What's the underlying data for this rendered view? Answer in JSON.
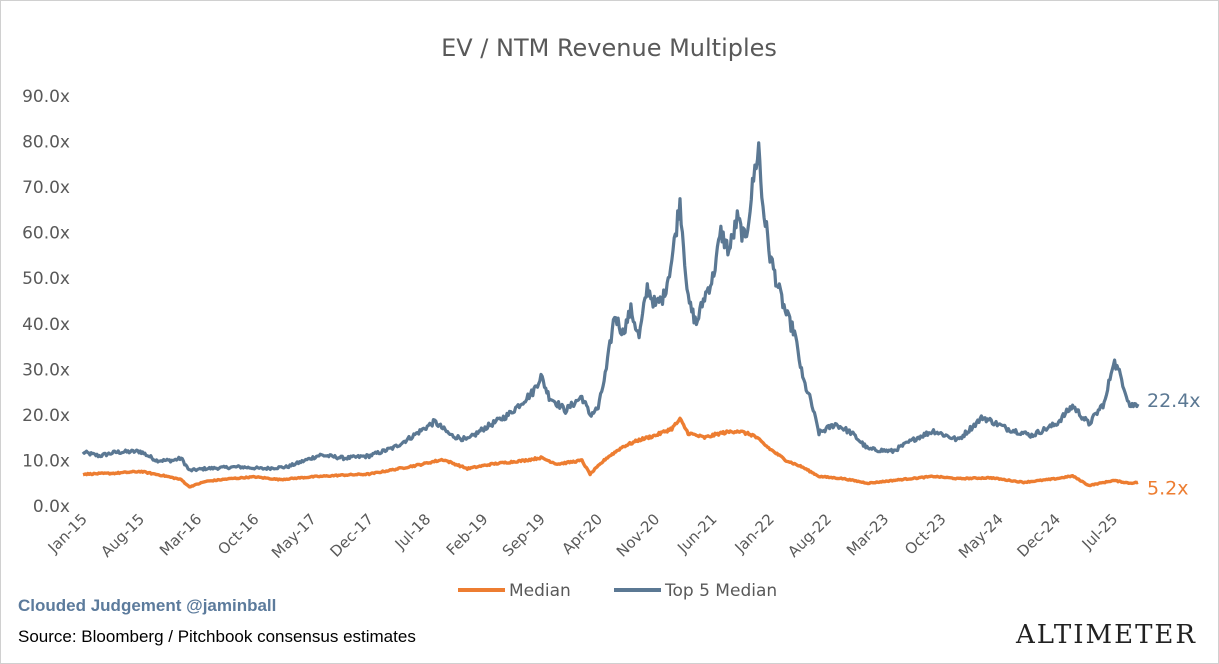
{
  "chart_data": {
    "type": "line",
    "title": "EV / NTM Revenue Multiples",
    "ylim": [
      0,
      90
    ],
    "yticks": [
      "0.0x",
      "10.0x",
      "20.0x",
      "30.0x",
      "40.0x",
      "50.0x",
      "60.0x",
      "70.0x",
      "80.0x",
      "90.0x"
    ],
    "xlim": [
      "2015-01",
      "2025-10"
    ],
    "xticks": [
      "Jan-15",
      "Aug-15",
      "Mar-16",
      "Oct-16",
      "May-17",
      "Dec-17",
      "Jul-18",
      "Feb-19",
      "Sep-19",
      "Apr-20",
      "Nov-20",
      "Jun-21",
      "Jan-22",
      "Aug-22",
      "Mar-23",
      "Oct-23",
      "May-24",
      "Dec-24",
      "Jul-25"
    ],
    "grid": false,
    "legend": "bottom",
    "series": [
      {
        "name": "Median",
        "color": "#ed7d31",
        "end_label": "5.2x",
        "points": [
          [
            "2015-01",
            7.0
          ],
          [
            "2015-05",
            7.2
          ],
          [
            "2015-08",
            7.6
          ],
          [
            "2015-11",
            6.6
          ],
          [
            "2016-01",
            5.8
          ],
          [
            "2016-02",
            4.2
          ],
          [
            "2016-04",
            5.4
          ],
          [
            "2016-07",
            6.0
          ],
          [
            "2016-10",
            6.4
          ],
          [
            "2017-01",
            5.8
          ],
          [
            "2017-05",
            6.4
          ],
          [
            "2017-09",
            6.8
          ],
          [
            "2017-12",
            7.0
          ],
          [
            "2018-03",
            8.0
          ],
          [
            "2018-06",
            9.0
          ],
          [
            "2018-09",
            10.2
          ],
          [
            "2018-12",
            8.2
          ],
          [
            "2019-03",
            9.2
          ],
          [
            "2019-07",
            10.0
          ],
          [
            "2019-09",
            10.6
          ],
          [
            "2019-11",
            9.2
          ],
          [
            "2020-02",
            10.0
          ],
          [
            "2020-03",
            7.0
          ],
          [
            "2020-05",
            10.5
          ],
          [
            "2020-07",
            13.0
          ],
          [
            "2020-09",
            14.5
          ],
          [
            "2020-11",
            15.5
          ],
          [
            "2021-01",
            17.0
          ],
          [
            "2021-02",
            19.0
          ],
          [
            "2021-03",
            16.0
          ],
          [
            "2021-05",
            15.0
          ],
          [
            "2021-07",
            16.0
          ],
          [
            "2021-09",
            16.5
          ],
          [
            "2021-11",
            15.5
          ],
          [
            "2022-01",
            12.5
          ],
          [
            "2022-03",
            10.0
          ],
          [
            "2022-05",
            8.5
          ],
          [
            "2022-07",
            6.5
          ],
          [
            "2022-10",
            6.0
          ],
          [
            "2023-01",
            5.0
          ],
          [
            "2023-05",
            5.8
          ],
          [
            "2023-09",
            6.5
          ],
          [
            "2023-12",
            6.0
          ],
          [
            "2024-04",
            6.2
          ],
          [
            "2024-08",
            5.2
          ],
          [
            "2024-12",
            6.0
          ],
          [
            "2025-02",
            6.6
          ],
          [
            "2025-04",
            4.5
          ],
          [
            "2025-07",
            5.6
          ],
          [
            "2025-09",
            5.0
          ],
          [
            "2025-10",
            5.2
          ]
        ]
      },
      {
        "name": "Top 5 Median",
        "color": "#5b7893",
        "end_label": "22.4x",
        "points": [
          [
            "2015-01",
            11.8
          ],
          [
            "2015-03",
            11.0
          ],
          [
            "2015-05",
            11.8
          ],
          [
            "2015-08",
            12.0
          ],
          [
            "2015-10",
            10.0
          ],
          [
            "2015-12",
            10.0
          ],
          [
            "2016-01",
            10.5
          ],
          [
            "2016-02",
            7.8
          ],
          [
            "2016-04",
            8.2
          ],
          [
            "2016-08",
            8.6
          ],
          [
            "2016-11",
            8.2
          ],
          [
            "2017-02",
            8.6
          ],
          [
            "2017-06",
            11.2
          ],
          [
            "2017-09",
            10.5
          ],
          [
            "2017-12",
            11.0
          ],
          [
            "2018-03",
            12.8
          ],
          [
            "2018-05",
            15.0
          ],
          [
            "2018-08",
            18.5
          ],
          [
            "2018-10",
            15.5
          ],
          [
            "2018-12",
            14.5
          ],
          [
            "2019-02",
            17.0
          ],
          [
            "2019-05",
            20.0
          ],
          [
            "2019-08",
            25.0
          ],
          [
            "2019-09",
            28.5
          ],
          [
            "2019-10",
            24.0
          ],
          [
            "2019-12",
            21.0
          ],
          [
            "2020-02",
            24.0
          ],
          [
            "2020-03",
            20.0
          ],
          [
            "2020-04",
            21.5
          ],
          [
            "2020-05",
            30.0
          ],
          [
            "2020-06",
            42.0
          ],
          [
            "2020-07",
            38.0
          ],
          [
            "2020-08",
            43.0
          ],
          [
            "2020-09",
            37.0
          ],
          [
            "2020-10",
            48.0
          ],
          [
            "2020-11",
            44.0
          ],
          [
            "2020-12",
            46.0
          ],
          [
            "2021-01",
            54.0
          ],
          [
            "2021-02",
            67.0
          ],
          [
            "2021-03",
            45.0
          ],
          [
            "2021-04",
            40.0
          ],
          [
            "2021-05",
            46.0
          ],
          [
            "2021-06",
            50.0
          ],
          [
            "2021-07",
            60.0
          ],
          [
            "2021-08",
            56.0
          ],
          [
            "2021-09",
            63.0
          ],
          [
            "2021-10",
            58.0
          ],
          [
            "2021-11",
            72.0
          ],
          [
            "2021-11-20",
            79.0
          ],
          [
            "2021-12",
            68.0
          ],
          [
            "2022-01",
            55.0
          ],
          [
            "2022-02",
            48.0
          ],
          [
            "2022-03",
            42.0
          ],
          [
            "2022-04",
            38.0
          ],
          [
            "2022-05",
            28.0
          ],
          [
            "2022-06",
            23.0
          ],
          [
            "2022-07",
            16.0
          ],
          [
            "2022-09",
            18.0
          ],
          [
            "2022-11",
            16.0
          ],
          [
            "2023-01",
            12.5
          ],
          [
            "2023-04",
            12.0
          ],
          [
            "2023-07",
            15.0
          ],
          [
            "2023-09",
            16.5
          ],
          [
            "2023-12",
            14.5
          ],
          [
            "2024-03",
            19.5
          ],
          [
            "2024-06",
            17.0
          ],
          [
            "2024-09",
            15.5
          ],
          [
            "2024-12",
            18.0
          ],
          [
            "2025-02",
            22.0
          ],
          [
            "2025-04",
            18.0
          ],
          [
            "2025-06",
            23.0
          ],
          [
            "2025-07",
            32.0
          ],
          [
            "2025-08",
            28.0
          ],
          [
            "2025-09",
            22.0
          ],
          [
            "2025-10",
            22.4
          ]
        ]
      }
    ]
  },
  "footer": {
    "brand": "Clouded Judgement @jaminball",
    "source": "Source: Bloomberg / Pitchbook consensus estimates",
    "logo": "ALTIMETER"
  }
}
